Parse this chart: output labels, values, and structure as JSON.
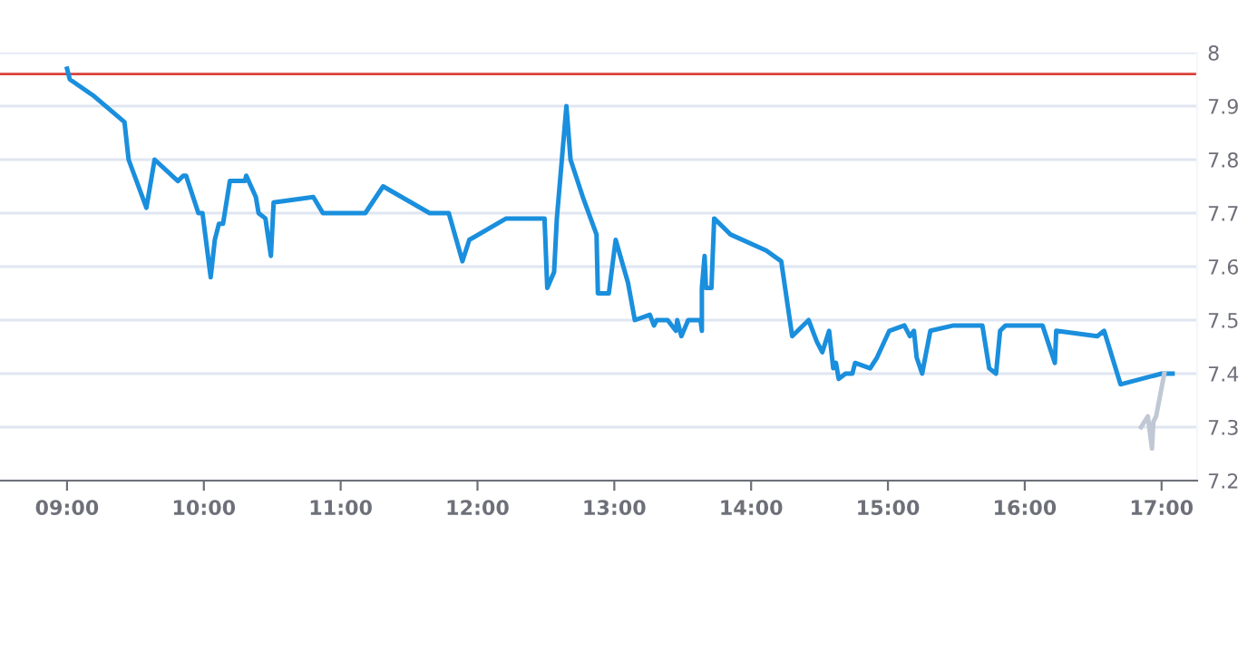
{
  "chart_data": {
    "type": "line",
    "series": [
      {
        "color": "#1a8fdd",
        "x": [
          9.0,
          9.02,
          9.19,
          9.42,
          9.45,
          9.58,
          9.64,
          9.81,
          9.85,
          9.87,
          9.96,
          9.99,
          10.05,
          10.08,
          10.11,
          10.14,
          10.19,
          10.3,
          10.31,
          10.38,
          10.4,
          10.45,
          10.49,
          10.51,
          10.8,
          10.87,
          11.18,
          11.31,
          11.65,
          11.79,
          11.89,
          11.94,
          12.21,
          12.49,
          12.51,
          12.56,
          12.58,
          12.65,
          12.68,
          12.77,
          12.87,
          12.88,
          12.96,
          13.01,
          13.1,
          13.15,
          13.26,
          13.29,
          13.31,
          13.39,
          13.45,
          13.46,
          13.49,
          13.54,
          13.63,
          13.64,
          13.64,
          13.66,
          13.67,
          13.71,
          13.73,
          13.85,
          14.11,
          14.22,
          14.3,
          14.42,
          14.48,
          14.52,
          14.57,
          14.6,
          14.62,
          14.64,
          14.69,
          14.74,
          14.76,
          14.87,
          14.92,
          15.01,
          15.12,
          15.16,
          15.19,
          15.21,
          15.25,
          15.31,
          15.48,
          15.69,
          15.74,
          15.79,
          15.82,
          15.86,
          16.13,
          16.22,
          16.23,
          16.53,
          16.58,
          16.7,
          17.0,
          17.08
        ],
        "values": [
          7.97,
          7.95,
          7.92,
          7.87,
          7.8,
          7.71,
          7.8,
          7.76,
          7.77,
          7.77,
          7.7,
          7.7,
          7.58,
          7.65,
          7.68,
          7.68,
          7.76,
          7.76,
          7.77,
          7.73,
          7.7,
          7.69,
          7.62,
          7.72,
          7.73,
          7.7,
          7.7,
          7.75,
          7.7,
          7.7,
          7.61,
          7.65,
          7.69,
          7.69,
          7.56,
          7.59,
          7.69,
          7.9,
          7.8,
          7.73,
          7.66,
          7.55,
          7.55,
          7.65,
          7.57,
          7.5,
          7.51,
          7.49,
          7.5,
          7.5,
          7.48,
          7.5,
          7.47,
          7.5,
          7.5,
          7.48,
          7.56,
          7.62,
          7.56,
          7.56,
          7.69,
          7.66,
          7.63,
          7.61,
          7.47,
          7.5,
          7.46,
          7.44,
          7.48,
          7.41,
          7.42,
          7.39,
          7.4,
          7.4,
          7.42,
          7.41,
          7.43,
          7.48,
          7.49,
          7.47,
          7.48,
          7.43,
          7.4,
          7.48,
          7.49,
          7.49,
          7.41,
          7.4,
          7.48,
          7.49,
          7.49,
          7.42,
          7.48,
          7.47,
          7.48,
          7.38,
          7.4,
          7.4
        ]
      },
      {
        "color": "#bfc8d4",
        "x": [
          16.85,
          16.9,
          16.93,
          16.94,
          16.96,
          17.02
        ],
        "values": [
          7.3,
          7.32,
          7.26,
          7.31,
          7.32,
          7.4
        ]
      }
    ],
    "xlim": [
      8.51,
      17.26
    ],
    "xticks": [
      {
        "value": 9,
        "label": "09:00"
      },
      {
        "value": 10,
        "label": "10:00"
      },
      {
        "value": 11,
        "label": "11:00"
      },
      {
        "value": 12,
        "label": "12:00"
      },
      {
        "value": 13,
        "label": "13:00"
      },
      {
        "value": 14,
        "label": "14:00"
      },
      {
        "value": 15,
        "label": "15:00"
      },
      {
        "value": 16,
        "label": "16:00"
      },
      {
        "value": 17,
        "label": "17:00"
      }
    ],
    "ylim": [
      7.2,
      8.0
    ],
    "yticks": [
      7.2,
      7.3,
      7.4,
      7.5,
      7.6,
      7.7,
      7.8,
      7.9,
      8
    ],
    "ref_lines": [
      {
        "axis": "y",
        "value": 7.96,
        "color": "#d9413a"
      }
    ],
    "grid": "y"
  }
}
